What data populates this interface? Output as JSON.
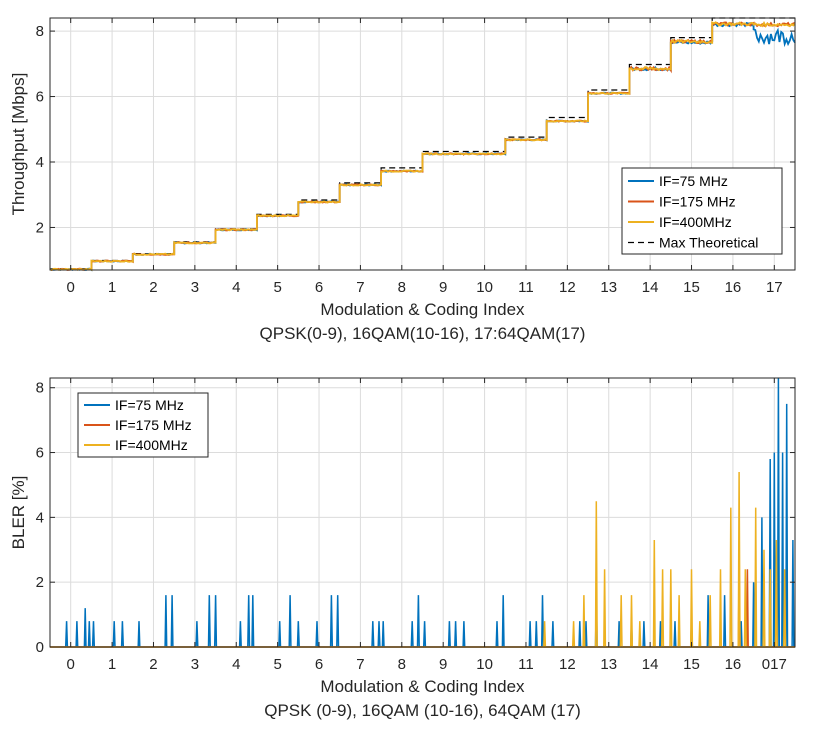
{
  "chart_data": [
    {
      "type": "line",
      "xlabel": "Modulation & Coding Index",
      "xlabel2": "QPSK(0-9), 16QAM(10-16), 17:64QAM(17)",
      "ylabel": "Throughput [Mbps]",
      "xlim": [
        -0.5,
        17.5
      ],
      "ylim": [
        0.7,
        8.4
      ],
      "xticks": [
        "0",
        "1",
        "2",
        "3",
        "4",
        "5",
        "6",
        "7",
        "8",
        "9",
        "10",
        "11",
        "12",
        "13",
        "14",
        "15",
        "16",
        "17"
      ],
      "yticks": [
        "2",
        "4",
        "6",
        "8"
      ],
      "grid": true,
      "legend_position": "lower-right",
      "x": [
        0,
        1,
        2,
        3,
        4,
        5,
        6,
        7,
        8,
        9,
        10,
        11,
        12,
        13,
        14,
        15,
        16,
        17
      ],
      "series": [
        {
          "name": "IF=75 MHz",
          "color": "#0072BD",
          "values": [
            0.72,
            0.97,
            1.18,
            1.53,
            1.93,
            2.36,
            2.78,
            3.3,
            3.72,
            4.25,
            4.25,
            4.68,
            5.25,
            6.1,
            6.85,
            7.65,
            8.2,
            7.9
          ]
        },
        {
          "name": "IF=175 MHz",
          "color": "#D95319",
          "values": [
            0.72,
            0.97,
            1.18,
            1.53,
            1.93,
            2.36,
            2.78,
            3.3,
            3.72,
            4.25,
            4.25,
            4.68,
            5.25,
            6.1,
            6.85,
            7.68,
            8.22,
            8.2
          ]
        },
        {
          "name": "IF=400MHz",
          "color": "#EDB120",
          "values": [
            0.72,
            0.97,
            1.18,
            1.53,
            1.93,
            2.36,
            2.78,
            3.3,
            3.72,
            4.25,
            4.25,
            4.68,
            5.25,
            6.1,
            6.85,
            7.68,
            8.22,
            8.2
          ]
        },
        {
          "name": "Max Theoretical",
          "color": "#000000",
          "style": "dashed",
          "values": [
            0.74,
            0.99,
            1.2,
            1.56,
            1.96,
            2.4,
            2.84,
            3.36,
            3.82,
            4.32,
            4.32,
            4.76,
            5.36,
            6.2,
            6.98,
            7.8,
            8.4,
            8.4
          ]
        }
      ]
    },
    {
      "type": "line",
      "xlabel": "Modulation & Coding Index",
      "xlabel2": "QPSK (0-9), 16QAM (10-16), 64QAM (17)",
      "ylabel": "BLER [%]",
      "xlim": [
        -0.5,
        17.5
      ],
      "ylim": [
        0,
        8.3
      ],
      "xticks": [
        "0",
        "1",
        "2",
        "3",
        "4",
        "5",
        "6",
        "7",
        "8",
        "9",
        "10",
        "11",
        "12",
        "13",
        "14",
        "15",
        "16",
        "017"
      ],
      "yticks": [
        "0",
        "2",
        "4",
        "6",
        "8"
      ],
      "grid": true,
      "legend_position": "upper-left",
      "series": [
        {
          "name": "IF=75 MHz",
          "color": "#0072BD",
          "x": [
            -0.1,
            0.15,
            0.35,
            0.45,
            0.55,
            1.05,
            1.25,
            1.65,
            2.3,
            2.45,
            3.05,
            3.35,
            3.5,
            4.1,
            4.3,
            4.4,
            5.05,
            5.3,
            5.5,
            5.95,
            6.3,
            6.45,
            7.3,
            7.45,
            7.55,
            8.25,
            8.4,
            8.55,
            9.15,
            9.3,
            9.5,
            10.3,
            10.45,
            11.1,
            11.25,
            11.4,
            11.65,
            12.3,
            12.45,
            12.7,
            13.25,
            13.55,
            13.85,
            14.25,
            14.6,
            15.0,
            15.4,
            15.8,
            16.2,
            16.5,
            16.7,
            16.9,
            17.0,
            17.1,
            17.2,
            17.3,
            17.45
          ],
          "values": [
            0.8,
            0.8,
            1.2,
            0.8,
            0.8,
            0.8,
            0.8,
            0.8,
            1.6,
            1.6,
            0.8,
            1.6,
            1.6,
            0.8,
            1.6,
            1.6,
            0.8,
            1.6,
            0.8,
            0.8,
            1.6,
            1.6,
            0.8,
            0.8,
            0.8,
            0.8,
            1.6,
            0.8,
            0.8,
            0.8,
            0.8,
            0.8,
            1.6,
            0.8,
            0.8,
            1.6,
            0.8,
            0.8,
            0.8,
            1.6,
            0.8,
            0.8,
            0.8,
            0.8,
            0.8,
            0.8,
            1.6,
            1.6,
            0.8,
            2.0,
            4.0,
            5.8,
            6.0,
            8.3,
            6.0,
            7.5,
            3.3
          ]
        },
        {
          "name": "IF=175 MHz",
          "color": "#D95319",
          "x": [
            16.15,
            16.35
          ],
          "values": [
            2.4,
            2.4
          ]
        },
        {
          "name": "IF=400MHz",
          "color": "#EDB120",
          "x": [
            11.45,
            12.15,
            12.4,
            12.7,
            12.9,
            13.3,
            13.55,
            13.75,
            14.1,
            14.3,
            14.5,
            14.7,
            15.0,
            15.2,
            15.45,
            15.7,
            15.95,
            16.15,
            16.3,
            16.55,
            16.75,
            16.9,
            17.05,
            17.25
          ],
          "values": [
            0.8,
            0.8,
            1.6,
            4.5,
            2.4,
            1.6,
            1.6,
            0.8,
            3.3,
            2.4,
            2.4,
            1.6,
            2.4,
            0.8,
            1.6,
            2.4,
            4.3,
            5.4,
            2.4,
            4.3,
            3.0,
            2.4,
            3.3,
            2.4
          ]
        }
      ]
    }
  ]
}
